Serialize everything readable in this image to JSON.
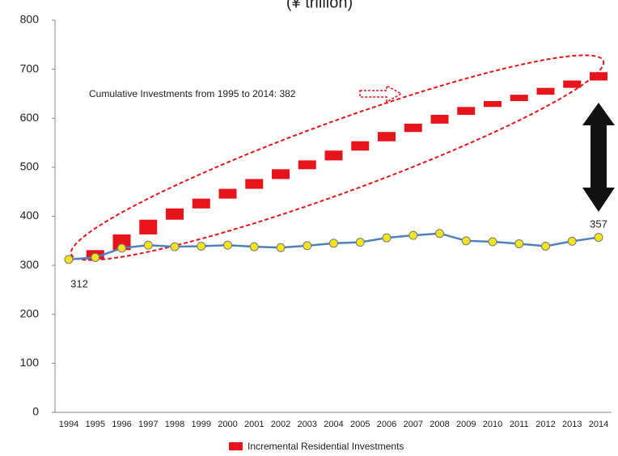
{
  "chart_data": {
    "type": "line",
    "title": "(¥ trillion)",
    "categories": [
      "1994",
      "1995",
      "1996",
      "1997",
      "1998",
      "1999",
      "2000",
      "2001",
      "2002",
      "2003",
      "2004",
      "2005",
      "2006",
      "2007",
      "2008",
      "2009",
      "2010",
      "2011",
      "2012",
      "2013",
      "2014"
    ],
    "series": [
      {
        "values": [
          312,
          316,
          335,
          341,
          338,
          339,
          341,
          338,
          336,
          340,
          345,
          347,
          356,
          361,
          365,
          350,
          348,
          344,
          339,
          349,
          357
        ],
        "color": "#4f81bd",
        "marker_color": "#f2e41e"
      },
      {
        "name": "Incremental Residential Investments",
        "type": "waterfall",
        "color": "#e8141c",
        "values": [
          null,
          19,
          32,
          30,
          23,
          20,
          20,
          20,
          20,
          18,
          20,
          19,
          19,
          17,
          18,
          16,
          12,
          13,
          14,
          15,
          17
        ]
      }
    ],
    "ylim": [
      0,
      800
    ],
    "yticks": [
      0,
      100,
      200,
      300,
      400,
      500,
      600,
      700,
      800
    ],
    "annotations": [
      "Cumulative Investments from 1995 to 2014: 382",
      "312",
      "357"
    ],
    "legend": "bottom"
  }
}
